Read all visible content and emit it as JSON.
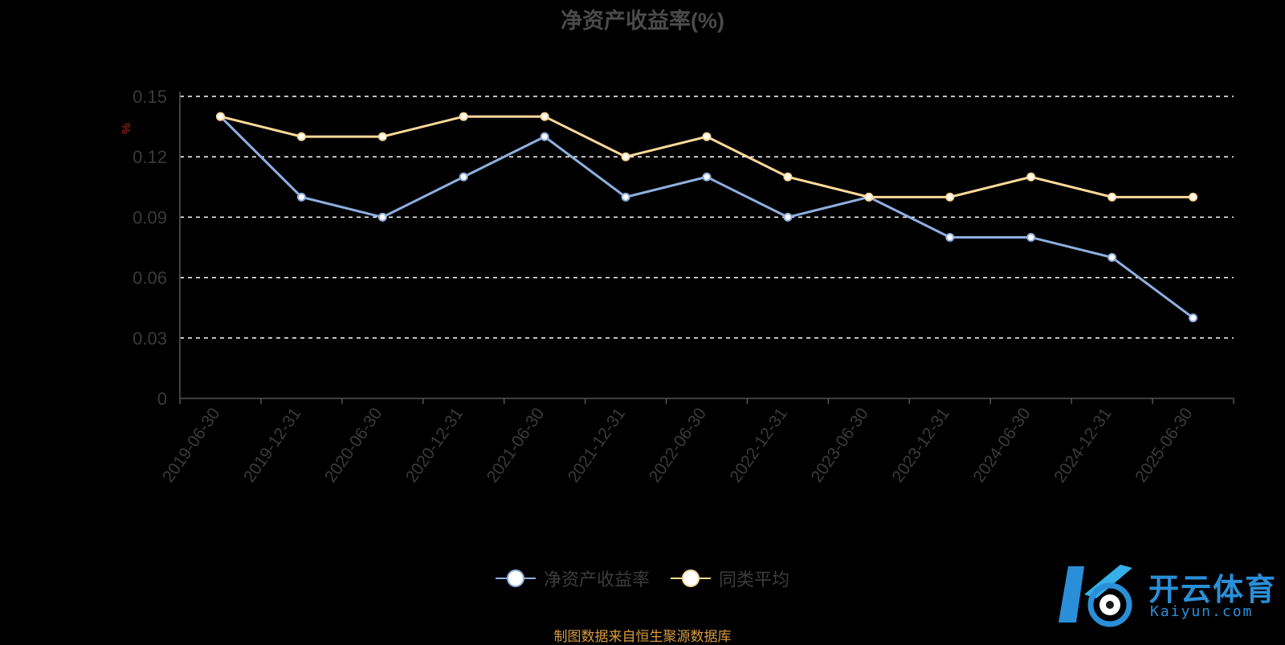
{
  "title": "净资产收益率(%)",
  "source": "制图数据来自恒生聚源数据库",
  "watermark": {
    "name": "开云体育",
    "url": "Kaiyun.com",
    "icon": "k-soccer-logo-icon"
  },
  "colors": {
    "series1": "#8fb0e0",
    "series2": "#ffd99a",
    "ylabel": "#cc2222",
    "axis": "#555555",
    "grid": "#ffffff",
    "tick": "#3a3a3a"
  },
  "chart_data": {
    "type": "line",
    "title": "净资产收益率(%)",
    "ylabel": "%",
    "xlabel": "",
    "ylim": [
      0,
      0.15
    ],
    "yticks": [
      "0",
      "0.03",
      "0.06",
      "0.09",
      "0.12",
      "0.15"
    ],
    "grid": "dashed horizontal",
    "legend_position": "bottom-center",
    "categories": [
      "2019-06-30",
      "2019-12-31",
      "2020-06-30",
      "2020-12-31",
      "2021-06-30",
      "2021-12-31",
      "2022-06-30",
      "2022-12-31",
      "2023-06-30",
      "2023-12-31",
      "2024-06-30",
      "2024-12-31",
      "2025-06-30"
    ],
    "series": [
      {
        "name": "净资产收益率",
        "values": [
          0.14,
          0.1,
          0.09,
          0.11,
          0.13,
          0.1,
          0.11,
          0.09,
          0.1,
          0.08,
          0.08,
          0.07,
          0.04
        ]
      },
      {
        "name": "同类平均",
        "values": [
          0.14,
          0.13,
          0.13,
          0.14,
          0.14,
          0.12,
          0.13,
          0.11,
          0.1,
          0.1,
          0.11,
          0.1,
          0.1
        ]
      }
    ]
  }
}
